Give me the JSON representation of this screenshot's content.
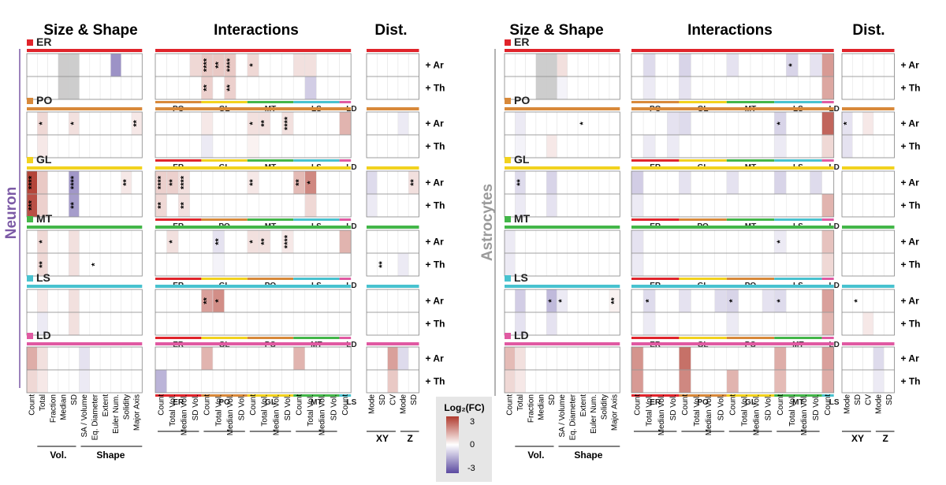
{
  "section_titles": {
    "size_shape": "Size & Shape",
    "interactions": "Interactions",
    "dist": "Dist."
  },
  "panel_labels": {
    "neuron": "Neuron",
    "astrocytes": "Astrocytes"
  },
  "treatments": [
    "+ Ar",
    "+ Th"
  ],
  "organelles": [
    {
      "key": "ER",
      "label": "ER",
      "color": "#e0242b"
    },
    {
      "key": "PO",
      "label": "PO",
      "color": "#d8893a"
    },
    {
      "key": "GL",
      "label": "GL",
      "color": "#f2d21e"
    },
    {
      "key": "MT",
      "label": "MT",
      "color": "#43b649"
    },
    {
      "key": "LS",
      "label": "LS",
      "color": "#48c2cf"
    },
    {
      "key": "LD",
      "label": "LD",
      "color": "#e05aa2"
    }
  ],
  "size_shape_columns": [
    "Count",
    "Total",
    "Fraction",
    "Median",
    "SD",
    "SA / Volume",
    "Eq. Diameter",
    "Extent",
    "Euler Num.",
    "Solidity",
    "Major Axis"
  ],
  "size_shape_groups": [
    "Vol.",
    "Shape"
  ],
  "interaction_columns": [
    "Count",
    "Total Vol.",
    "Median Vol.",
    "SD Vol."
  ],
  "dist_columns_neuron": [
    "Mode",
    "SD",
    "CV",
    "Mode",
    "SD"
  ],
  "dist_columns_astro": [
    "Mode",
    "SD",
    "CV",
    "Mode",
    "SD"
  ],
  "dist_groups": [
    "XY",
    "Z"
  ],
  "legend": {
    "title": "Log₂(FC)",
    "max_label": "3",
    "mid_label": "0",
    "min_label": "-3",
    "max_color": "#b03a2e",
    "mid_color": "#ffffff",
    "min_color": "#5b4aa0"
  },
  "neuron_partners": {
    "ER": [
      "PO",
      "GL",
      "MT",
      "LS",
      "LD"
    ],
    "PO": [
      "ER",
      "GL",
      "MT",
      "LS",
      "LD"
    ],
    "GL": [
      "ER",
      "PO",
      "MT",
      "LS",
      "LD"
    ],
    "MT": [
      "ER",
      "GL",
      "PO",
      "LS",
      "LD"
    ],
    "LS": [
      "ER",
      "GL",
      "PO",
      "MT",
      "LD"
    ],
    "LD": [
      "ER",
      "PO",
      "GL",
      "MT",
      "LS"
    ]
  },
  "astro_partners": {
    "ER": [
      "PO",
      "GL",
      "MT",
      "LS",
      "LD"
    ],
    "PO": [
      "ER",
      "GL",
      "MT",
      "LS",
      "LD"
    ],
    "GL": [
      "ER",
      "PO",
      "MT",
      "LS",
      "LD"
    ],
    "MT": [
      "ER",
      "GL",
      "PO",
      "LS",
      "LD"
    ],
    "LS": [
      "ER",
      "GL",
      "PO",
      "MT",
      "LD"
    ],
    "LD": [
      "ER",
      "PO",
      "GL",
      "MT",
      "LS"
    ]
  },
  "neuron_size_cells": [
    [
      {
        "i": 3,
        "v": 0.1
      },
      {
        "i": 8,
        "v": -1.6
      }
    ],
    [
      {
        "i": 3,
        "v": 0.1
      },
      {
        "i": 8,
        "v": 0
      }
    ],
    [
      {
        "i": 1,
        "v": 0.4,
        "s": "*"
      },
      {
        "i": 4,
        "v": 0.3,
        "s": "*"
      },
      {
        "i": 10,
        "v": 0.2,
        "s": "**"
      }
    ],
    [
      {
        "i": 1,
        "v": 0.2
      }
    ],
    [
      {
        "i": 0,
        "v": 2.8,
        "s": "****"
      },
      {
        "i": 1,
        "v": 0.6
      },
      {
        "i": 4,
        "v": -1.5,
        "s": "****"
      },
      {
        "i": 9,
        "v": 0.2,
        "s": "**"
      }
    ],
    [
      {
        "i": 0,
        "v": 2.6,
        "s": "***"
      },
      {
        "i": 1,
        "v": 0.5
      },
      {
        "i": 4,
        "v": -1.4,
        "s": "**"
      }
    ],
    [
      {
        "i": 1,
        "v": 0.4,
        "s": "*"
      },
      {
        "i": 4,
        "v": 0.3
      }
    ],
    [
      {
        "i": 1,
        "v": 0.4,
        "s": "**"
      },
      {
        "i": 4,
        "v": 0.3
      },
      {
        "i": 6,
        "v": 0,
        "s": "*"
      }
    ],
    [
      {
        "i": 1,
        "v": 0.2
      },
      {
        "i": 4,
        "v": 0.3
      }
    ],
    [
      {
        "i": 1,
        "v": -0.2
      },
      {
        "i": 4,
        "v": 0.3
      }
    ],
    [
      {
        "i": 0,
        "v": 1.0
      },
      {
        "i": 1,
        "v": 0.3
      },
      {
        "i": 5,
        "v": -0.3
      }
    ],
    [
      {
        "i": 0,
        "v": 0.4
      },
      {
        "i": 1,
        "v": 0.2
      },
      {
        "i": 5,
        "v": -0.2
      }
    ]
  ],
  "neuron_int_cells": [
    [
      {
        "i": 3,
        "v": 0.4
      },
      {
        "i": 4,
        "v": 0.6,
        "s": "****"
      },
      {
        "i": 5,
        "v": 0.6,
        "s": "**"
      },
      {
        "i": 6,
        "v": 0.6,
        "s": "****"
      },
      {
        "i": 8,
        "v": 0.4,
        "s": "*"
      },
      {
        "i": 12,
        "v": 0.3
      },
      {
        "i": 13,
        "v": 0.3
      }
    ],
    [
      {
        "i": 4,
        "v": 0.5,
        "s": "**"
      },
      {
        "i": 6,
        "v": 0.5,
        "s": "**"
      },
      {
        "i": 13,
        "v": -0.6
      }
    ],
    [
      {
        "i": 4,
        "v": 0.2
      },
      {
        "i": 8,
        "v": 0.3,
        "s": "*"
      },
      {
        "i": 9,
        "v": 0.3,
        "s": "**"
      },
      {
        "i": 11,
        "v": 0.3,
        "s": "****"
      },
      {
        "i": 16,
        "v": 0.9
      }
    ],
    [
      {
        "i": 4,
        "v": -0.2
      },
      {
        "i": 8,
        "v": 0.1
      }
    ],
    [
      {
        "i": 0,
        "v": 0.5,
        "s": "****"
      },
      {
        "i": 1,
        "v": 0.5,
        "s": "**"
      },
      {
        "i": 2,
        "v": 0.3,
        "s": "****"
      },
      {
        "i": 8,
        "v": 0.2,
        "s": "**"
      },
      {
        "i": 12,
        "v": 0.8,
        "s": "**"
      },
      {
        "i": 13,
        "v": 1.6,
        "s": "*"
      }
    ],
    [
      {
        "i": 0,
        "v": 0.4,
        "s": "**"
      },
      {
        "i": 2,
        "v": 0.3,
        "s": "**"
      },
      {
        "i": 13,
        "v": 0.4
      }
    ],
    [
      {
        "i": 1,
        "v": 0.3,
        "s": "*"
      },
      {
        "i": 5,
        "v": -0.3,
        "s": "**"
      },
      {
        "i": 8,
        "v": 0.3,
        "s": "*"
      },
      {
        "i": 9,
        "v": 0.3,
        "s": "**"
      },
      {
        "i": 11,
        "v": 0.2,
        "s": "****"
      },
      {
        "i": 16,
        "v": 0.9
      }
    ],
    [
      {
        "i": 5,
        "v": -0.1
      }
    ],
    [
      {
        "i": 4,
        "v": 1.2,
        "s": "**"
      },
      {
        "i": 5,
        "v": 1.5,
        "s": "*"
      }
    ],
    [],
    [
      {
        "i": 4,
        "v": 0.9
      },
      {
        "i": 12,
        "v": 0.9
      }
    ],
    [
      {
        "i": 0,
        "v": -1.0
      }
    ]
  ],
  "neuron_dist_cells": [
    [],
    [],
    [
      {
        "i": 3,
        "v": -0.2
      }
    ],
    [],
    [
      {
        "i": 0,
        "v": -0.4
      },
      {
        "i": 4,
        "v": 0.3,
        "s": "**"
      }
    ],
    [
      {
        "i": 0,
        "v": -0.2
      }
    ],
    [],
    [
      {
        "i": 1,
        "v": 0,
        "s": "**"
      },
      {
        "i": 3,
        "v": -0.2
      }
    ],
    [],
    [],
    [
      {
        "i": 2,
        "v": 1.2
      },
      {
        "i": 3,
        "v": -0.4
      }
    ],
    [
      {
        "i": 2,
        "v": 0.6
      }
    ]
  ],
  "astro_size_cells": [
    [
      {
        "i": 5,
        "v": 0.3
      }
    ],
    [
      {
        "i": 5,
        "v": -0.1
      }
    ],
    [
      {
        "i": 1,
        "v": -0.2
      },
      {
        "i": 7,
        "v": 0,
        "s": "*"
      }
    ],
    [
      {
        "i": 1,
        "v": -0.1
      },
      {
        "i": 4,
        "v": 0.2
      }
    ],
    [
      {
        "i": 1,
        "v": -0.4,
        "s": "**"
      },
      {
        "i": 4,
        "v": -0.5
      }
    ],
    [
      {
        "i": 1,
        "v": -0.2
      },
      {
        "i": 4,
        "v": -0.3
      }
    ],
    [
      {
        "i": 0,
        "v": -0.2
      }
    ],
    [
      {
        "i": 0,
        "v": -0.2
      }
    ],
    [
      {
        "i": 1,
        "v": -0.6
      },
      {
        "i": 4,
        "v": -0.9,
        "s": "*"
      },
      {
        "i": 5,
        "v": -0.2,
        "s": "*"
      },
      {
        "i": 10,
        "v": 0.1,
        "s": "**"
      }
    ],
    [
      {
        "i": 1,
        "v": -0.3
      },
      {
        "i": 4,
        "v": -0.3
      }
    ],
    [
      {
        "i": 0,
        "v": 0.8
      },
      {
        "i": 1,
        "v": 0.3
      }
    ],
    [
      {
        "i": 0,
        "v": 0.4
      },
      {
        "i": 1,
        "v": 0.2
      }
    ]
  ],
  "astro_int_cells": [
    [
      {
        "i": 1,
        "v": -0.4
      },
      {
        "i": 4,
        "v": -0.5
      },
      {
        "i": 8,
        "v": -0.3
      },
      {
        "i": 13,
        "v": -0.5,
        "s": "*"
      },
      {
        "i": 15,
        "v": -0.3
      },
      {
        "i": 16,
        "v": 1.3
      }
    ],
    [
      {
        "i": 1,
        "v": -0.2
      },
      {
        "i": 4,
        "v": -0.3
      },
      {
        "i": 16,
        "v": 1.1
      }
    ],
    [
      {
        "i": 3,
        "v": -0.3
      },
      {
        "i": 4,
        "v": -0.4
      },
      {
        "i": 12,
        "v": -0.5,
        "s": "*"
      },
      {
        "i": 16,
        "v": 2.2
      }
    ],
    [
      {
        "i": 1,
        "v": -0.2
      },
      {
        "i": 3,
        "v": -0.2
      },
      {
        "i": 12,
        "v": -0.2
      },
      {
        "i": 16,
        "v": 0.4
      }
    ],
    [
      {
        "i": 0,
        "v": -0.6
      },
      {
        "i": 4,
        "v": -0.3
      },
      {
        "i": 8,
        "v": -0.3
      },
      {
        "i": 12,
        "v": -0.5
      },
      {
        "i": 15,
        "v": -0.4
      }
    ],
    [
      {
        "i": 0,
        "v": -0.2
      },
      {
        "i": 16,
        "v": 0.9
      }
    ],
    [
      {
        "i": 0,
        "v": -0.3
      },
      {
        "i": 12,
        "v": -0.2,
        "s": "*"
      },
      {
        "i": 16,
        "v": 0.7
      }
    ],
    [
      {
        "i": 0,
        "v": -0.2
      },
      {
        "i": 16,
        "v": 0.4
      }
    ],
    [
      {
        "i": 1,
        "v": -0.4,
        "s": "*"
      },
      {
        "i": 4,
        "v": -0.3
      },
      {
        "i": 7,
        "v": -0.4
      },
      {
        "i": 8,
        "v": -0.5,
        "s": "*"
      },
      {
        "i": 11,
        "v": -0.3
      },
      {
        "i": 12,
        "v": -0.4,
        "s": "*"
      },
      {
        "i": 16,
        "v": 1.2
      }
    ],
    [
      {
        "i": 1,
        "v": -0.2
      },
      {
        "i": 8,
        "v": -0.2
      },
      {
        "i": 16,
        "v": 0.9
      }
    ],
    [
      {
        "i": 0,
        "v": 1.4
      },
      {
        "i": 4,
        "v": 2.0
      },
      {
        "i": 12,
        "v": 1.0
      },
      {
        "i": 16,
        "v": 1.2
      }
    ],
    [
      {
        "i": 0,
        "v": 1.3
      },
      {
        "i": 4,
        "v": 1.6
      },
      {
        "i": 8,
        "v": 0.9
      },
      {
        "i": 12,
        "v": 0.8
      },
      {
        "i": 16,
        "v": 1.0
      }
    ]
  ],
  "astro_dist_cells": [
    [],
    [],
    [
      {
        "i": 0,
        "v": -0.3,
        "s": "*"
      },
      {
        "i": 2,
        "v": 0.2
      }
    ],
    [
      {
        "i": 0,
        "v": -0.3
      }
    ],
    [],
    [],
    [],
    [],
    [
      {
        "i": 1,
        "v": 0,
        "s": "*"
      }
    ],
    [
      {
        "i": 2,
        "v": 0.2
      }
    ],
    [
      {
        "i": 3,
        "v": -0.4
      }
    ],
    [
      {
        "i": 3,
        "v": -0.2
      }
    ]
  ]
}
